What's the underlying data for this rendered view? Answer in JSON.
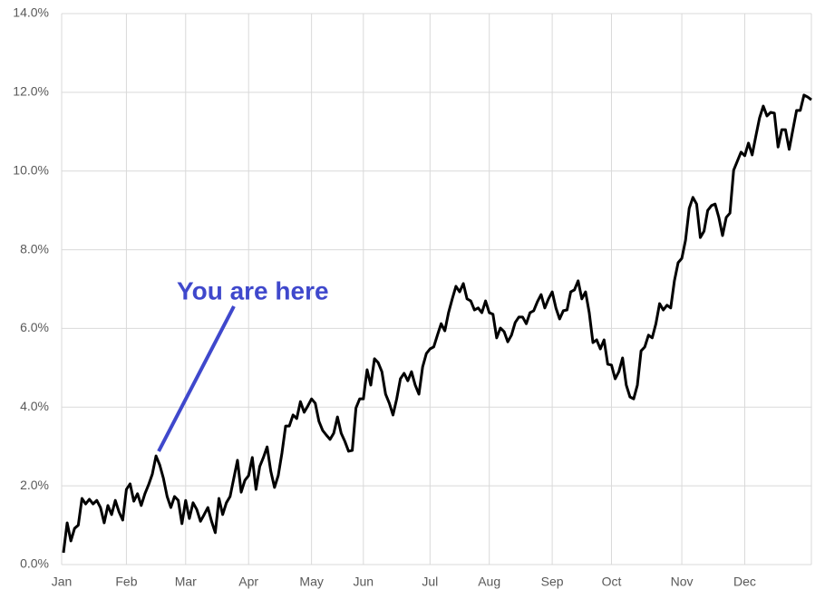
{
  "chart_data": {
    "type": "line",
    "categories": [
      "Jan",
      null,
      null,
      null,
      null,
      null,
      null,
      null,
      null,
      null,
      null,
      null,
      null,
      null,
      null,
      null,
      null,
      "Feb",
      null,
      null,
      null,
      null,
      null,
      null,
      null,
      null,
      null,
      null,
      null,
      null,
      null,
      null,
      null,
      "Mar",
      null,
      null,
      null,
      null,
      null,
      null,
      null,
      null,
      null,
      null,
      null,
      null,
      null,
      null,
      null,
      null,
      "Apr",
      null,
      null,
      null,
      null,
      null,
      null,
      null,
      null,
      null,
      null,
      null,
      null,
      null,
      null,
      null,
      null,
      "May",
      null,
      null,
      null,
      null,
      null,
      null,
      null,
      null,
      null,
      null,
      null,
      null,
      null,
      "Jun",
      null,
      null,
      null,
      null,
      null,
      null,
      null,
      null,
      null,
      null,
      null,
      null,
      null,
      null,
      null,
      null,
      null,
      "Jul",
      null,
      null,
      null,
      null,
      null,
      null,
      null,
      null,
      null,
      null,
      null,
      null,
      null,
      null,
      null,
      "Aug",
      null,
      null,
      null,
      null,
      null,
      null,
      null,
      null,
      null,
      null,
      null,
      null,
      null,
      null,
      null,
      null,
      "Sep",
      null,
      null,
      null,
      null,
      null,
      null,
      null,
      null,
      null,
      null,
      null,
      null,
      null,
      null,
      null,
      "Oct",
      null,
      null,
      null,
      null,
      null,
      null,
      null,
      null,
      null,
      null,
      null,
      null,
      null,
      null,
      null,
      null,
      null,
      null,
      "Nov",
      null,
      null,
      null,
      null,
      null,
      null,
      null,
      null,
      null,
      null,
      null,
      null,
      null,
      null,
      null,
      null,
      "Dec",
      null,
      null,
      null,
      null,
      null,
      null,
      null,
      null,
      null,
      null,
      null,
      null,
      null,
      null,
      null,
      null,
      null,
      null
    ],
    "series": [
      {
        "color": "#000000",
        "values": [
          0.3,
          1.06,
          0.6,
          0.92,
          1.0,
          1.68,
          1.54,
          1.66,
          1.54,
          1.63,
          1.45,
          1.06,
          1.5,
          1.27,
          1.63,
          1.34,
          1.13,
          1.91,
          2.05,
          1.61,
          1.8,
          1.5,
          1.8,
          2.03,
          2.3,
          2.76,
          2.53,
          2.19,
          1.73,
          1.45,
          1.73,
          1.63,
          1.04,
          1.63,
          1.17,
          1.57,
          1.4,
          1.1,
          1.27,
          1.45,
          1.1,
          0.81,
          1.68,
          1.27,
          1.57,
          1.73,
          2.19,
          2.65,
          1.84,
          2.14,
          2.26,
          2.72,
          1.91,
          2.49,
          2.72,
          2.99,
          2.37,
          1.96,
          2.26,
          2.83,
          3.52,
          3.52,
          3.8,
          3.71,
          4.14,
          3.87,
          4.03,
          4.21,
          4.1,
          3.64,
          3.41,
          3.29,
          3.18,
          3.34,
          3.75,
          3.34,
          3.13,
          2.88,
          2.9,
          3.98,
          4.21,
          4.21,
          4.95,
          4.56,
          5.23,
          5.13,
          4.9,
          4.33,
          4.1,
          3.8,
          4.21,
          4.72,
          4.86,
          4.67,
          4.9,
          4.56,
          4.33,
          5.02,
          5.36,
          5.48,
          5.53,
          5.83,
          6.12,
          5.94,
          6.4,
          6.75,
          7.07,
          6.93,
          7.14,
          6.75,
          6.7,
          6.47,
          6.52,
          6.4,
          6.7,
          6.4,
          6.36,
          5.76,
          6.01,
          5.92,
          5.66,
          5.83,
          6.15,
          6.29,
          6.29,
          6.12,
          6.4,
          6.45,
          6.68,
          6.86,
          6.52,
          6.75,
          6.93,
          6.52,
          6.24,
          6.45,
          6.47,
          6.93,
          6.98,
          7.21,
          6.75,
          6.93,
          6.4,
          5.64,
          5.71,
          5.48,
          5.71,
          5.09,
          5.07,
          4.72,
          4.9,
          5.25,
          4.56,
          4.26,
          4.21,
          4.56,
          5.43,
          5.53,
          5.83,
          5.76,
          6.12,
          6.63,
          6.47,
          6.59,
          6.52,
          7.21,
          7.67,
          7.78,
          8.24,
          9.05,
          9.33,
          9.16,
          8.31,
          8.47,
          9.0,
          9.12,
          9.16,
          8.82,
          8.36,
          8.82,
          8.93,
          10.02,
          10.25,
          10.48,
          10.39,
          10.71,
          10.41,
          10.89,
          11.35,
          11.65,
          11.4,
          11.49,
          11.47,
          10.61,
          11.05,
          11.05,
          10.55,
          11.05,
          11.54,
          11.54,
          11.93,
          11.88,
          11.81
        ]
      }
    ],
    "ylim": [
      0,
      14
    ],
    "yticks": [
      {
        "value": 0,
        "label": "0.0%"
      },
      {
        "value": 2,
        "label": "2.0%"
      },
      {
        "value": 4,
        "label": "4.0%"
      },
      {
        "value": 6,
        "label": "6.0%"
      },
      {
        "value": 8,
        "label": "8.0%"
      },
      {
        "value": 10,
        "label": "10.0%"
      },
      {
        "value": 12,
        "label": "12.0%"
      },
      {
        "value": 14,
        "label": "14.0%"
      }
    ],
    "grid": true,
    "annotation": {
      "text": "You are here",
      "color": "#3f48cc"
    }
  }
}
